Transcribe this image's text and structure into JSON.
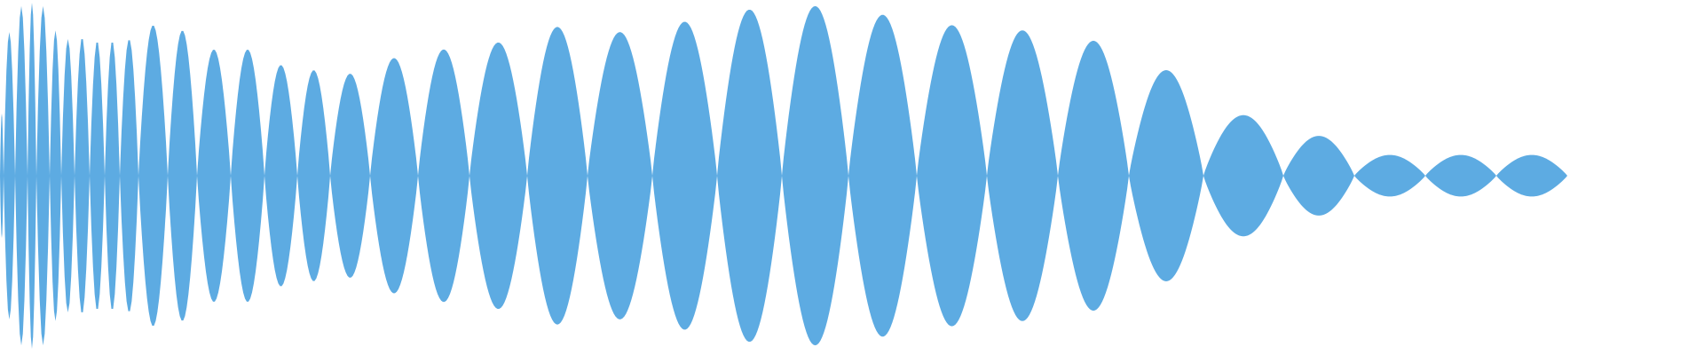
{
  "waveform": {
    "fill_color": "#5DABE2",
    "background_color": "#FFFFFF",
    "lobes": [
      {
        "width": 4,
        "amplitude": 0.36
      },
      {
        "width": 13,
        "amplitude": 0.83
      },
      {
        "width": 14,
        "amplitude": 0.98
      },
      {
        "width": 10,
        "amplitude": 1.0
      },
      {
        "width": 15,
        "amplitude": 0.98
      },
      {
        "width": 13,
        "amplitude": 0.84
      },
      {
        "width": 15,
        "amplitude": 0.79
      },
      {
        "width": 17,
        "amplitude": 0.8
      },
      {
        "width": 17,
        "amplitude": 0.78
      },
      {
        "width": 17,
        "amplitude": 0.78
      },
      {
        "width": 21,
        "amplitude": 0.79
      },
      {
        "width": 33,
        "amplitude": 0.87
      },
      {
        "width": 33,
        "amplitude": 0.84
      },
      {
        "width": 38,
        "amplitude": 0.73
      },
      {
        "width": 38,
        "amplitude": 0.73
      },
      {
        "width": 37,
        "amplitude": 0.64
      },
      {
        "width": 37,
        "amplitude": 0.61
      },
      {
        "width": 45,
        "amplitude": 0.59
      },
      {
        "width": 54,
        "amplitude": 0.68
      },
      {
        "width": 58,
        "amplitude": 0.73
      },
      {
        "width": 65,
        "amplitude": 0.77
      },
      {
        "width": 68,
        "amplitude": 0.86
      },
      {
        "width": 73,
        "amplitude": 0.83
      },
      {
        "width": 73,
        "amplitude": 0.89
      },
      {
        "width": 73,
        "amplitude": 0.96
      },
      {
        "width": 75,
        "amplitude": 0.98
      },
      {
        "width": 77,
        "amplitude": 0.93
      },
      {
        "width": 79,
        "amplitude": 0.87
      },
      {
        "width": 80,
        "amplitude": 0.84
      },
      {
        "width": 80,
        "amplitude": 0.78
      },
      {
        "width": 84,
        "amplitude": 0.61
      },
      {
        "width": 90,
        "amplitude": 0.35
      },
      {
        "width": 80,
        "amplitude": 0.23
      },
      {
        "width": 80,
        "amplitude": 0.12
      },
      {
        "width": 80,
        "amplitude": 0.12
      },
      {
        "width": 80,
        "amplitude": 0.12
      }
    ]
  }
}
